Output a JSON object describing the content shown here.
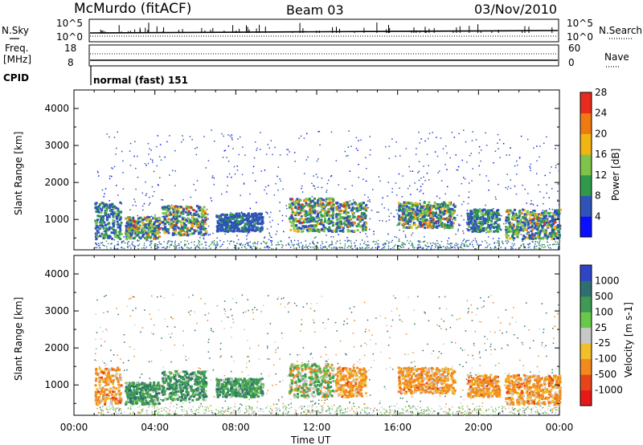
{
  "header": {
    "station": "McMurdo (fitACF)",
    "beam": "Beam 03",
    "date": "03/Nov/2010"
  },
  "top_panels": {
    "nsky_label": "N.Sky",
    "nsky_ticks": [
      "10^5",
      "10^0"
    ],
    "nsearch_label": "N.Search",
    "nsearch_ticks": [
      "10^5",
      "10^0"
    ],
    "freq_label": "Freq.",
    "freq_unit": "[MHz]",
    "freq_ticks": [
      "18",
      "8"
    ],
    "nave_label": "Nave",
    "nave_ticks": [
      "60",
      "0"
    ],
    "cpid_label": "CPID",
    "cpid_value": "normal (fast) 151"
  },
  "chart_data": [
    {
      "type": "heatmap",
      "panel": "power",
      "ylabel": "Slant Range [km]",
      "xlabel": "",
      "ylim": [
        180,
        4500
      ],
      "yticks": [
        "1000",
        "2000",
        "3000",
        "4000"
      ],
      "xticks": [
        "00:00",
        "04:00",
        "08:00",
        "12:00",
        "16:00",
        "20:00",
        "00:00"
      ],
      "colorbar": {
        "label": "Power [dB]",
        "ticks": [
          "4",
          "8",
          "12",
          "16",
          "20",
          "24",
          "28"
        ],
        "colors": [
          "#0a10ff",
          "#2f53b8",
          "#2e9a4a",
          "#7ec44a",
          "#f2b413",
          "#f07a12",
          "#e82b1c"
        ]
      },
      "echo_regions": [
        {
          "t_start": 1.0,
          "t_end": 2.3,
          "range_min": 500,
          "range_max": 1500,
          "level": "mid"
        },
        {
          "t_start": 2.5,
          "t_end": 4.2,
          "range_min": 500,
          "range_max": 1100,
          "level": "high"
        },
        {
          "t_start": 4.3,
          "t_end": 6.5,
          "range_min": 600,
          "range_max": 1400,
          "level": "high"
        },
        {
          "t_start": 7.0,
          "t_end": 9.3,
          "range_min": 700,
          "range_max": 1200,
          "level": "low"
        },
        {
          "t_start": 10.6,
          "t_end": 12.8,
          "range_min": 700,
          "range_max": 1600,
          "level": "high"
        },
        {
          "t_start": 12.9,
          "t_end": 14.4,
          "range_min": 700,
          "range_max": 1500,
          "level": "high"
        },
        {
          "t_start": 16.0,
          "t_end": 18.8,
          "range_min": 800,
          "range_max": 1500,
          "level": "high"
        },
        {
          "t_start": 19.4,
          "t_end": 21.0,
          "range_min": 700,
          "range_max": 1300,
          "level": "mid"
        },
        {
          "t_start": 21.3,
          "t_end": 24.0,
          "range_min": 500,
          "range_max": 1300,
          "level": "high"
        }
      ]
    },
    {
      "type": "heatmap",
      "panel": "velocity",
      "ylabel": "Slant Range [km]",
      "xlabel": "Time UT",
      "ylim": [
        180,
        4500
      ],
      "yticks": [
        "1000",
        "2000",
        "3000",
        "4000"
      ],
      "xticks": [
        "00:00",
        "04:00",
        "08:00",
        "12:00",
        "16:00",
        "20:00",
        "00:00"
      ],
      "colorbar": {
        "label": "Velocity [m s-1]",
        "ticks": [
          "1000",
          "500",
          "100",
          "25",
          "-25",
          "-100",
          "-500",
          "-1000"
        ],
        "colors": [
          "#2f45c8",
          "#2f6f6f",
          "#3e9a55",
          "#68c84a",
          "#c8c8c8",
          "#f2bf2a",
          "#f28a1e",
          "#e8441a",
          "#e81818"
        ]
      },
      "echo_regions": [
        {
          "t_start": 1.0,
          "t_end": 2.3,
          "range_min": 500,
          "range_max": 1500,
          "sign": "negative"
        },
        {
          "t_start": 2.5,
          "t_end": 4.2,
          "range_min": 500,
          "range_max": 1100,
          "sign": "positive"
        },
        {
          "t_start": 4.3,
          "t_end": 6.5,
          "range_min": 600,
          "range_max": 1400,
          "sign": "positive"
        },
        {
          "t_start": 7.0,
          "t_end": 9.3,
          "range_min": 700,
          "range_max": 1200,
          "sign": "positive"
        },
        {
          "t_start": 10.6,
          "t_end": 12.8,
          "range_min": 700,
          "range_max": 1600,
          "sign": "mixed"
        },
        {
          "t_start": 12.9,
          "t_end": 14.4,
          "range_min": 700,
          "range_max": 1500,
          "sign": "negative"
        },
        {
          "t_start": 16.0,
          "t_end": 18.8,
          "range_min": 800,
          "range_max": 1500,
          "sign": "negative"
        },
        {
          "t_start": 19.4,
          "t_end": 21.0,
          "range_min": 700,
          "range_max": 1300,
          "sign": "negative"
        },
        {
          "t_start": 21.3,
          "t_end": 24.0,
          "range_min": 500,
          "range_max": 1300,
          "sign": "negative"
        }
      ]
    }
  ]
}
